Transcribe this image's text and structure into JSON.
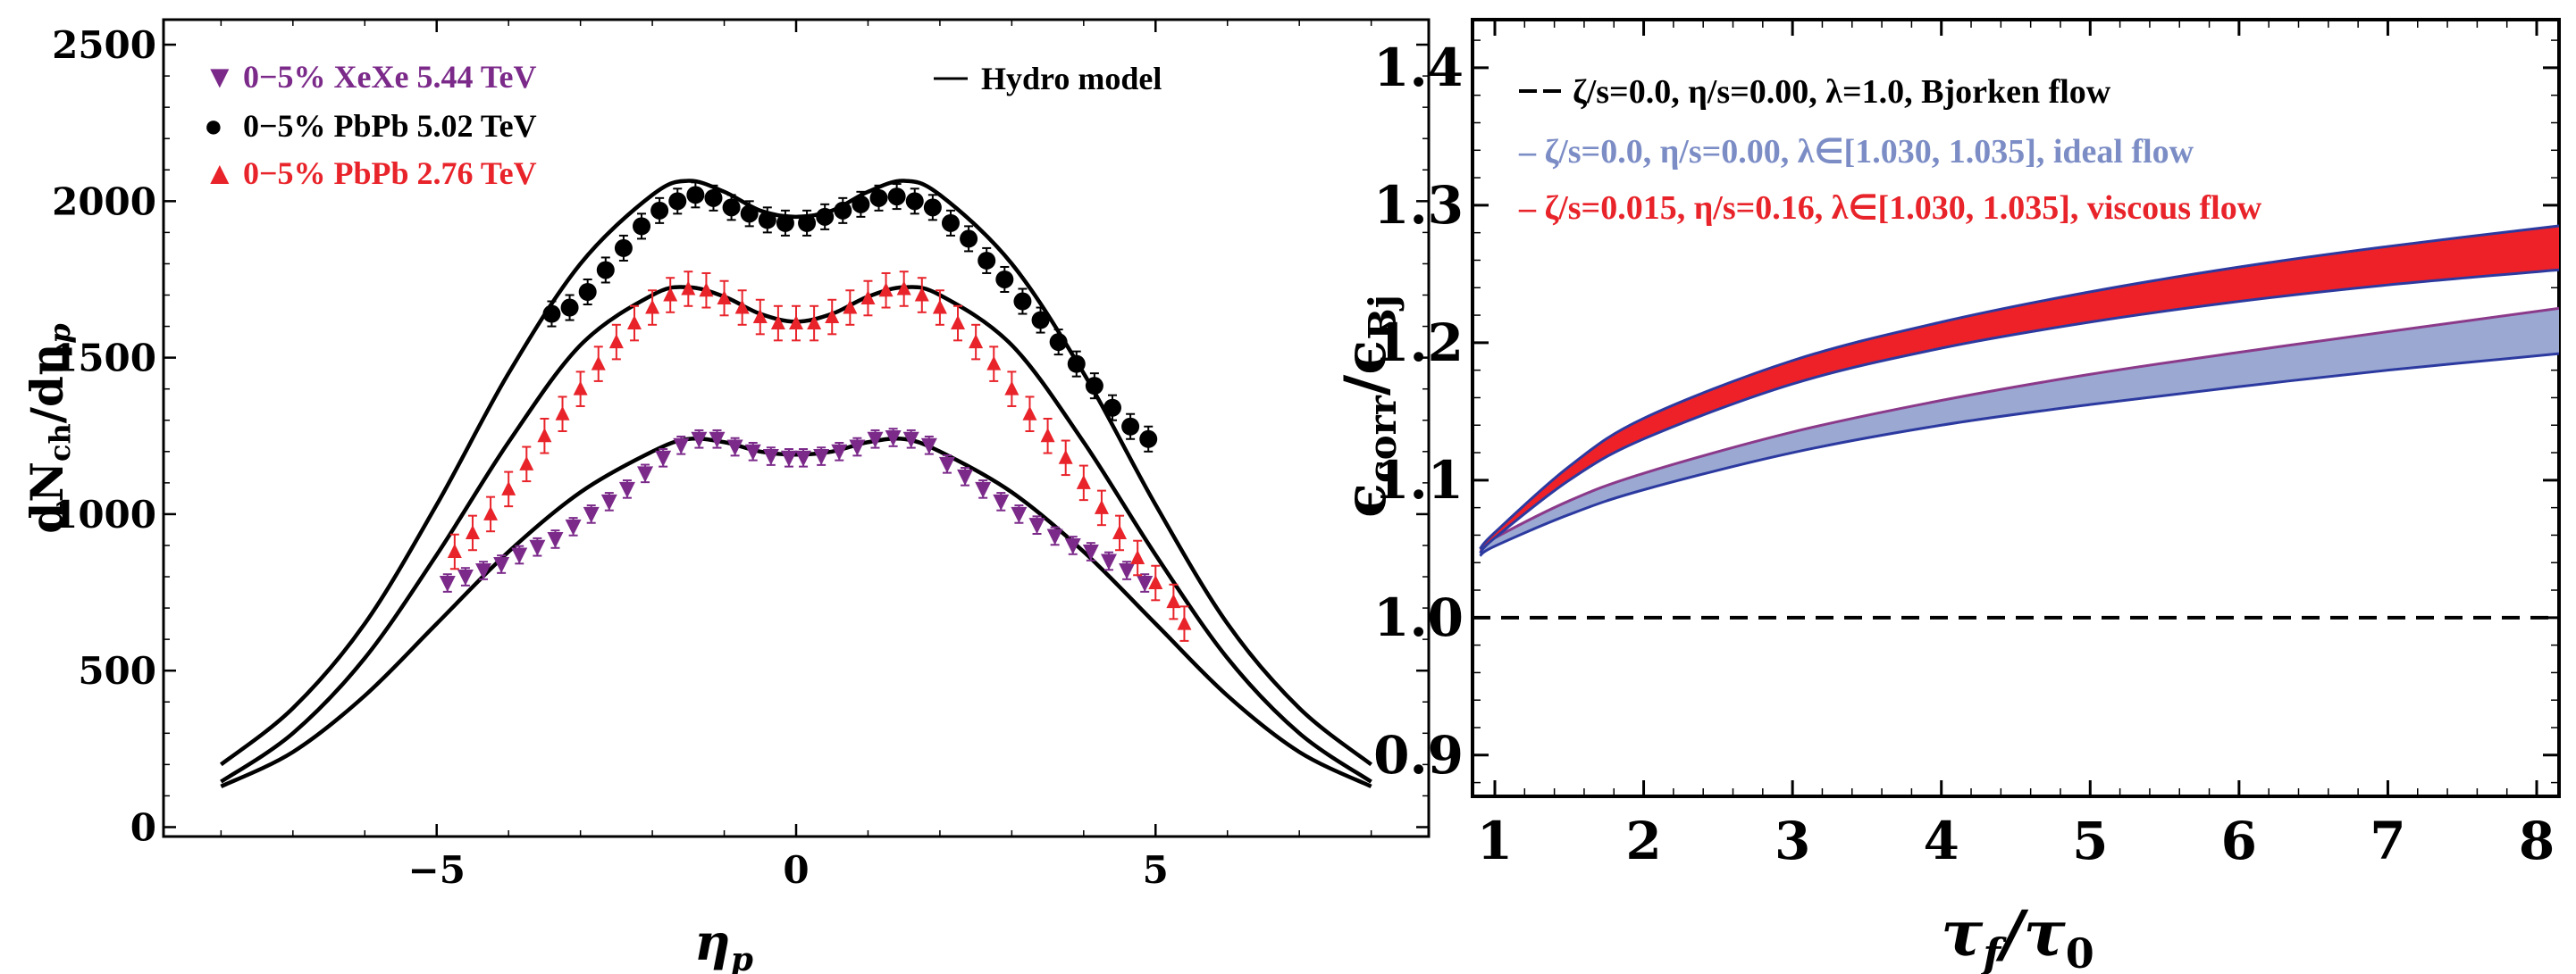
{
  "colors": {
    "purple": "#7b2a8a",
    "black": "#000000",
    "red": "#e8232a",
    "blue_fill": "#9aa8d2",
    "blue_line": "#2c3aa0",
    "red_fill": "#ee2028",
    "blue_text": "#7c8dc6"
  },
  "chart_data": [
    {
      "type": "scatter",
      "title": "",
      "xlabel": "η_p",
      "ylabel": "dN_ch/dη_p",
      "xlim": [
        -8.8,
        8.8
      ],
      "ylim": [
        -30,
        2580
      ],
      "xticks": [
        -5,
        0,
        5
      ],
      "yticks": [
        0,
        500,
        1000,
        1500,
        2000,
        2500
      ],
      "xtick_labels": [
        "−5",
        "0",
        "5"
      ],
      "ytick_labels": [
        "0",
        "500",
        "1000",
        "1500",
        "2000",
        "2500"
      ],
      "legend": {
        "position": "top",
        "entries": [
          {
            "symbol": "▼",
            "label": "0−5% XeXe 5.44 TeV",
            "color": "#7b2a8a"
          },
          {
            "symbol": "●",
            "label": "0−5% PbPb 5.02 TeV",
            "color": "#000000"
          },
          {
            "symbol": "▲",
            "label": "0−5% PbPb 2.76 TeV",
            "color": "#e8232a"
          },
          {
            "symbol": "—",
            "label": "Hydro model",
            "color": "#000000"
          }
        ]
      },
      "series": [
        {
          "name": "0−5% XeXe 5.44 TeV",
          "marker": "triangle-down",
          "color": "#7b2a8a",
          "x": [
            -4.85,
            -4.6,
            -4.35,
            -4.1,
            -3.85,
            -3.6,
            -3.35,
            -3.1,
            -2.85,
            -2.6,
            -2.35,
            -2.1,
            -1.85,
            -1.6,
            -1.35,
            -1.1,
            -0.85,
            -0.6,
            -0.35,
            -0.1,
            0.1,
            0.35,
            0.6,
            0.85,
            1.1,
            1.35,
            1.6,
            1.85,
            2.1,
            2.35,
            2.6,
            2.85,
            3.1,
            3.35,
            3.6,
            3.85,
            4.1,
            4.35,
            4.6,
            4.85
          ],
          "y": [
            780,
            800,
            820,
            840,
            870,
            895,
            920,
            960,
            1000,
            1040,
            1080,
            1130,
            1180,
            1220,
            1240,
            1240,
            1215,
            1200,
            1185,
            1180,
            1180,
            1185,
            1200,
            1215,
            1240,
            1245,
            1240,
            1220,
            1160,
            1120,
            1080,
            1040,
            1000,
            965,
            930,
            900,
            880,
            850,
            820,
            780
          ],
          "err": 28
        },
        {
          "name": "0−5% PbPb 5.02 TeV",
          "marker": "circle",
          "color": "#000000",
          "x": [
            -3.4,
            -3.15,
            -2.9,
            -2.65,
            -2.4,
            -2.15,
            -1.9,
            -1.65,
            -1.4,
            -1.15,
            -0.9,
            -0.65,
            -0.4,
            -0.15,
            0.15,
            0.4,
            0.65,
            0.9,
            1.15,
            1.4,
            1.65,
            1.9,
            2.15,
            2.4,
            2.65,
            2.9,
            3.15,
            3.4,
            3.65,
            3.9,
            4.15,
            4.4,
            4.65,
            4.9
          ],
          "y": [
            1640,
            1660,
            1710,
            1780,
            1850,
            1920,
            1970,
            2000,
            2020,
            2010,
            1980,
            1960,
            1940,
            1930,
            1930,
            1950,
            1970,
            1990,
            2010,
            2015,
            2000,
            1980,
            1930,
            1880,
            1810,
            1750,
            1680,
            1620,
            1550,
            1480,
            1410,
            1340,
            1280,
            1240
          ],
          "err": 40
        },
        {
          "name": "0−5% PbPb 2.76 TeV",
          "marker": "triangle-up",
          "color": "#e8232a",
          "x": [
            -4.75,
            -4.5,
            -4.25,
            -4.0,
            -3.75,
            -3.5,
            -3.25,
            -3.0,
            -2.75,
            -2.5,
            -2.25,
            -2.0,
            -1.75,
            -1.5,
            -1.25,
            -1.0,
            -0.75,
            -0.5,
            -0.25,
            0.0,
            0.25,
            0.5,
            0.75,
            1.0,
            1.25,
            1.5,
            1.75,
            2.0,
            2.25,
            2.5,
            2.75,
            3.0,
            3.25,
            3.5,
            3.75,
            4.0,
            4.25,
            4.5,
            4.75,
            5.0,
            5.25,
            5.4
          ],
          "y": [
            880,
            940,
            1000,
            1080,
            1160,
            1250,
            1320,
            1400,
            1480,
            1550,
            1610,
            1660,
            1700,
            1720,
            1715,
            1690,
            1660,
            1630,
            1610,
            1610,
            1610,
            1630,
            1660,
            1690,
            1715,
            1720,
            1700,
            1660,
            1610,
            1550,
            1480,
            1400,
            1320,
            1250,
            1180,
            1100,
            1020,
            940,
            860,
            780,
            720,
            650
          ],
          "err": 55
        }
      ],
      "hydro_model": {
        "label": "Hydro model",
        "color": "#000000",
        "curves": [
          {
            "x": [
              -8,
              -7,
              -6,
              -5,
              -4,
              -3,
              -2,
              -1.5,
              -1,
              -0.5,
              0,
              0.5,
              1,
              1.5,
              2,
              3,
              4,
              5,
              6,
              7,
              8
            ],
            "y": [
              200,
              380,
              650,
              1030,
              1450,
              1800,
              2020,
              2065,
              2030,
              1970,
              1950,
              1970,
              2030,
              2065,
              2020,
              1800,
              1450,
              1030,
              650,
              380,
              200
            ]
          },
          {
            "x": [
              -8,
              -7,
              -6,
              -5,
              -4,
              -3,
              -2,
              -1.5,
              -1,
              -0.5,
              0,
              0.5,
              1,
              1.5,
              2,
              3,
              4,
              5,
              6,
              7,
              8
            ],
            "y": [
              145,
              300,
              540,
              870,
              1230,
              1540,
              1700,
              1725,
              1695,
              1640,
              1615,
              1640,
              1695,
              1725,
              1700,
              1540,
              1230,
              870,
              540,
              300,
              145
            ]
          },
          {
            "x": [
              -8,
              -7,
              -6,
              -5,
              -4,
              -3,
              -2,
              -1.5,
              -1,
              -0.5,
              0,
              0.5,
              1,
              1.5,
              2,
              3,
              4,
              5,
              6,
              7,
              8
            ],
            "y": [
              130,
              240,
              420,
              650,
              880,
              1070,
              1200,
              1240,
              1230,
              1200,
              1190,
              1200,
              1230,
              1240,
              1200,
              1070,
              880,
              650,
              420,
              240,
              130
            ]
          }
        ]
      }
    },
    {
      "type": "line",
      "title": "",
      "xlabel": "τ_f/τ_0",
      "ylabel": "ϵ_corr/ϵ_Bj",
      "xlim": [
        0.85,
        8.15
      ],
      "ylim": [
        0.87,
        1.435
      ],
      "xticks": [
        1,
        2,
        3,
        4,
        5,
        6,
        7,
        8
      ],
      "yticks": [
        0.9,
        1.0,
        1.1,
        1.2,
        1.3,
        1.4
      ],
      "xtick_labels": [
        "1",
        "2",
        "3",
        "4",
        "5",
        "6",
        "7",
        "8"
      ],
      "ytick_labels": [
        "0.9",
        "1.0",
        "1.1",
        "1.2",
        "1.3",
        "1.4"
      ],
      "legend": {
        "position": "top",
        "entries": [
          {
            "prefix": "——",
            "label": "ζ/s=0.0, η/s=0.00, λ=1.0, Bjorken flow",
            "color": "#000000"
          },
          {
            "prefix": "–",
            "label": "ζ/s=0.0, η/s=0.00, λ∈[1.030, 1.035], ideal flow",
            "color": "#7c8dc6"
          },
          {
            "prefix": "–",
            "label": "ζ/s=0.015, η/s=0.16, λ∈[1.030, 1.035], viscous flow",
            "color": "#e8232a"
          }
        ]
      },
      "series": [
        {
          "name": "Bjorken flow",
          "style": "dashed",
          "x": [
            0.85,
            8.15
          ],
          "y": [
            1.0,
            1.0
          ]
        },
        {
          "name": "ideal flow",
          "style": "band",
          "x": [
            0.9,
            1.0,
            1.5,
            2,
            3,
            4,
            5,
            6,
            7,
            8.15
          ],
          "lower": [
            1.045,
            1.052,
            1.075,
            1.093,
            1.12,
            1.14,
            1.155,
            1.168,
            1.18,
            1.192
          ],
          "upper": [
            1.05,
            1.058,
            1.085,
            1.105,
            1.135,
            1.158,
            1.177,
            1.193,
            1.208,
            1.225
          ]
        },
        {
          "name": "viscous flow",
          "style": "band",
          "x": [
            0.9,
            1.0,
            1.5,
            2,
            3,
            4,
            5,
            6,
            7,
            8.15
          ],
          "lower": [
            1.047,
            1.058,
            1.1,
            1.13,
            1.17,
            1.196,
            1.215,
            1.23,
            1.242,
            1.253
          ],
          "upper": [
            1.05,
            1.062,
            1.11,
            1.145,
            1.187,
            1.215,
            1.237,
            1.255,
            1.27,
            1.285
          ]
        }
      ]
    }
  ]
}
